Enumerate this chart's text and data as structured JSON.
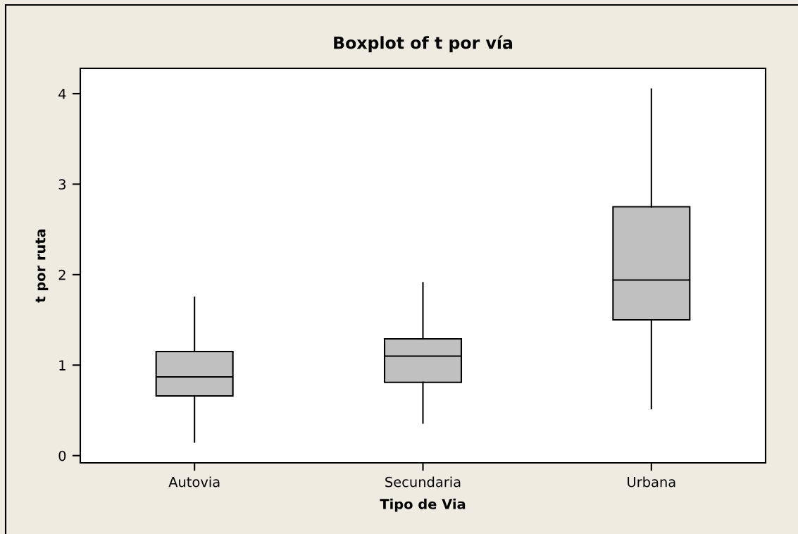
{
  "chart_data": {
    "type": "box",
    "title": "Boxplot of t por vía",
    "xlabel": "Tipo de Via",
    "ylabel": "t por ruta",
    "categories": [
      "Autovia",
      "Secundaria",
      "Urbana"
    ],
    "boxes": [
      {
        "low": 0.15,
        "q1": 0.66,
        "median": 0.87,
        "q3": 1.15,
        "high": 1.75
      },
      {
        "low": 0.36,
        "q1": 0.81,
        "median": 1.1,
        "q3": 1.29,
        "high": 1.91
      },
      {
        "low": 0.52,
        "q1": 1.5,
        "median": 1.94,
        "q3": 2.75,
        "high": 4.05
      }
    ],
    "color": "#c0c0c0",
    "ylim": [
      -0.08,
      4.28
    ],
    "yticks": [
      0,
      1,
      2,
      3,
      4
    ]
  }
}
